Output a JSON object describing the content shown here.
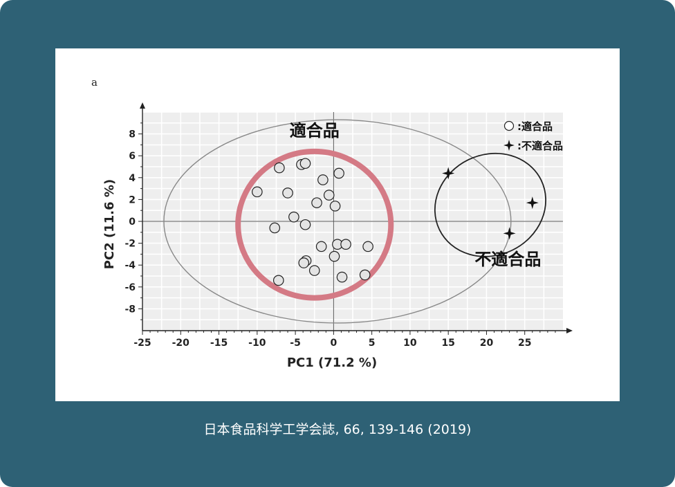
{
  "panel_label": "a",
  "caption": "日本食品科学工学会誌, 66, 139-146 (2019)",
  "colors": {
    "background": "#2e6175",
    "highlight_circle": "#d47a85",
    "plot_bg": "#eeeeee",
    "grid": "#ffffff"
  },
  "chart_data": {
    "type": "scatter",
    "title": "",
    "xlabel": "PC1 (71.2 %)",
    "ylabel": "PC2 (11.6 %)",
    "xlim": [
      -25,
      30
    ],
    "ylim": [
      -10,
      10
    ],
    "xticks": [
      -25,
      -20,
      -15,
      -10,
      -5,
      0,
      5,
      10,
      15,
      20,
      25
    ],
    "yticks": [
      -8,
      -6,
      -4,
      -2,
      0,
      2,
      4,
      6,
      8
    ],
    "grid": true,
    "legend_position": "top-right",
    "series": [
      {
        "name": "適合品",
        "marker": "open-circle",
        "points": [
          [
            -7.1,
            4.9
          ],
          [
            -4.2,
            5.2
          ],
          [
            -3.7,
            5.3
          ],
          [
            0.7,
            4.4
          ],
          [
            -1.4,
            3.8
          ],
          [
            -10.0,
            2.7
          ],
          [
            -6.0,
            2.6
          ],
          [
            -0.6,
            2.4
          ],
          [
            -2.2,
            1.7
          ],
          [
            0.2,
            1.4
          ],
          [
            -5.2,
            0.4
          ],
          [
            -3.7,
            -0.3
          ],
          [
            -7.7,
            -0.6
          ],
          [
            -1.6,
            -2.3
          ],
          [
            0.5,
            -2.1
          ],
          [
            1.6,
            -2.1
          ],
          [
            4.5,
            -2.3
          ],
          [
            0.1,
            -3.2
          ],
          [
            -3.6,
            -3.6
          ],
          [
            -3.9,
            -3.8
          ],
          [
            -2.5,
            -4.5
          ],
          [
            1.1,
            -5.1
          ],
          [
            4.1,
            -4.9
          ],
          [
            -7.2,
            -5.4
          ]
        ]
      },
      {
        "name": "不適合品",
        "marker": "four-point-star",
        "points": [
          [
            15.0,
            4.4
          ],
          [
            26.0,
            1.7
          ],
          [
            23.0,
            -1.1
          ]
        ]
      }
    ],
    "annotations": [
      {
        "text": "適合品",
        "x": -2.5,
        "y": 7.8
      },
      {
        "text": "不適合品",
        "x": 22.8,
        "y": -4.0
      }
    ],
    "ellipses": [
      {
        "cx": 0.5,
        "cy": 0.0,
        "rx": 22.7,
        "ry": 9.3,
        "angle": 0,
        "color": "#888888"
      },
      {
        "cx": 20.5,
        "cy": 1.5,
        "rx": 7.4,
        "ry": 4.6,
        "angle": -26,
        "color": "#222222"
      },
      {
        "cx": -2.5,
        "cy": -0.3,
        "rx": 10.0,
        "ry": 6.7,
        "angle": 0,
        "color": "#d47a85",
        "highlight": true
      }
    ]
  }
}
